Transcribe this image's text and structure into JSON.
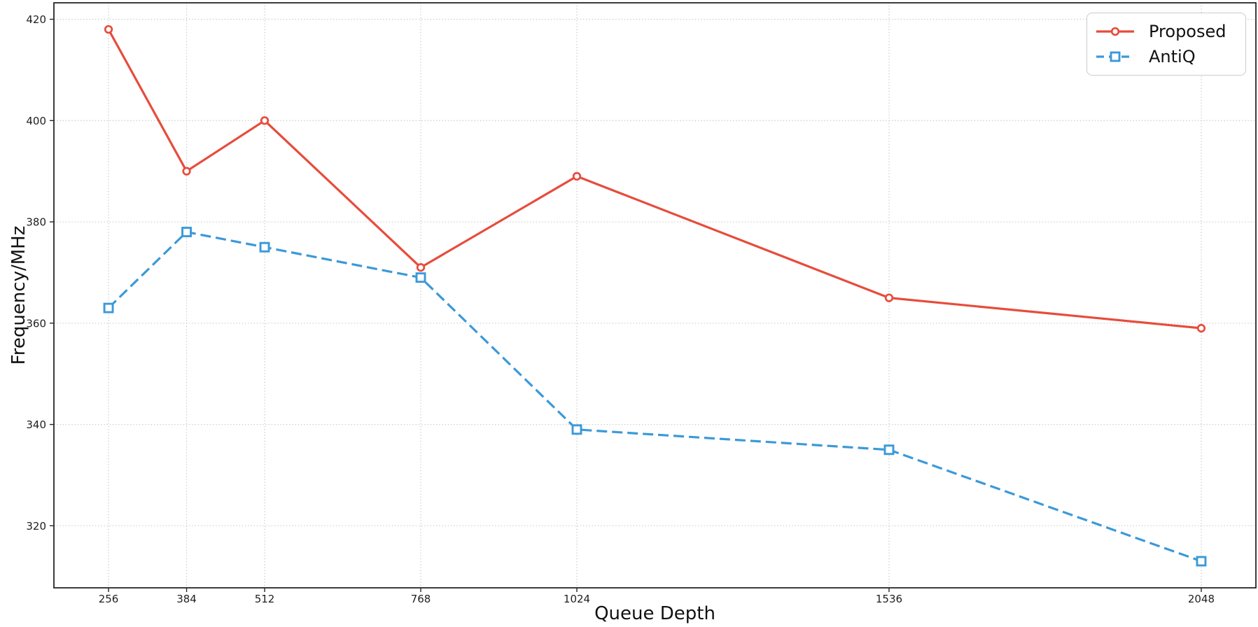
{
  "chart_data": {
    "type": "line",
    "title": "",
    "xlabel": "Queue Depth",
    "ylabel": "Frequency/MHz",
    "x": [
      256,
      384,
      512,
      768,
      1024,
      1536,
      2048
    ],
    "x_tick_labels": [
      "256",
      "384",
      "512",
      "768",
      "1024",
      "1536",
      "2048"
    ],
    "yticks": [
      320,
      340,
      360,
      380,
      400,
      420
    ],
    "y_tick_labels": [
      "320",
      "340",
      "360",
      "380",
      "400",
      "420"
    ],
    "xlim": [
      166.4,
      2137.6
    ],
    "ylim": [
      307.75,
      423.25
    ],
    "grid": true,
    "grid_style": "dotted",
    "legend_position": "upper right",
    "series": [
      {
        "name": "Proposed",
        "color": "#e74c3c",
        "line_style": "solid",
        "marker": "circle",
        "values": [
          418,
          390,
          400,
          371,
          389,
          365,
          359
        ]
      },
      {
        "name": "AntiQ",
        "color": "#3b99d9",
        "line_style": "dashed",
        "marker": "square",
        "values": [
          363,
          378,
          375,
          369,
          339,
          335,
          313
        ]
      }
    ]
  }
}
